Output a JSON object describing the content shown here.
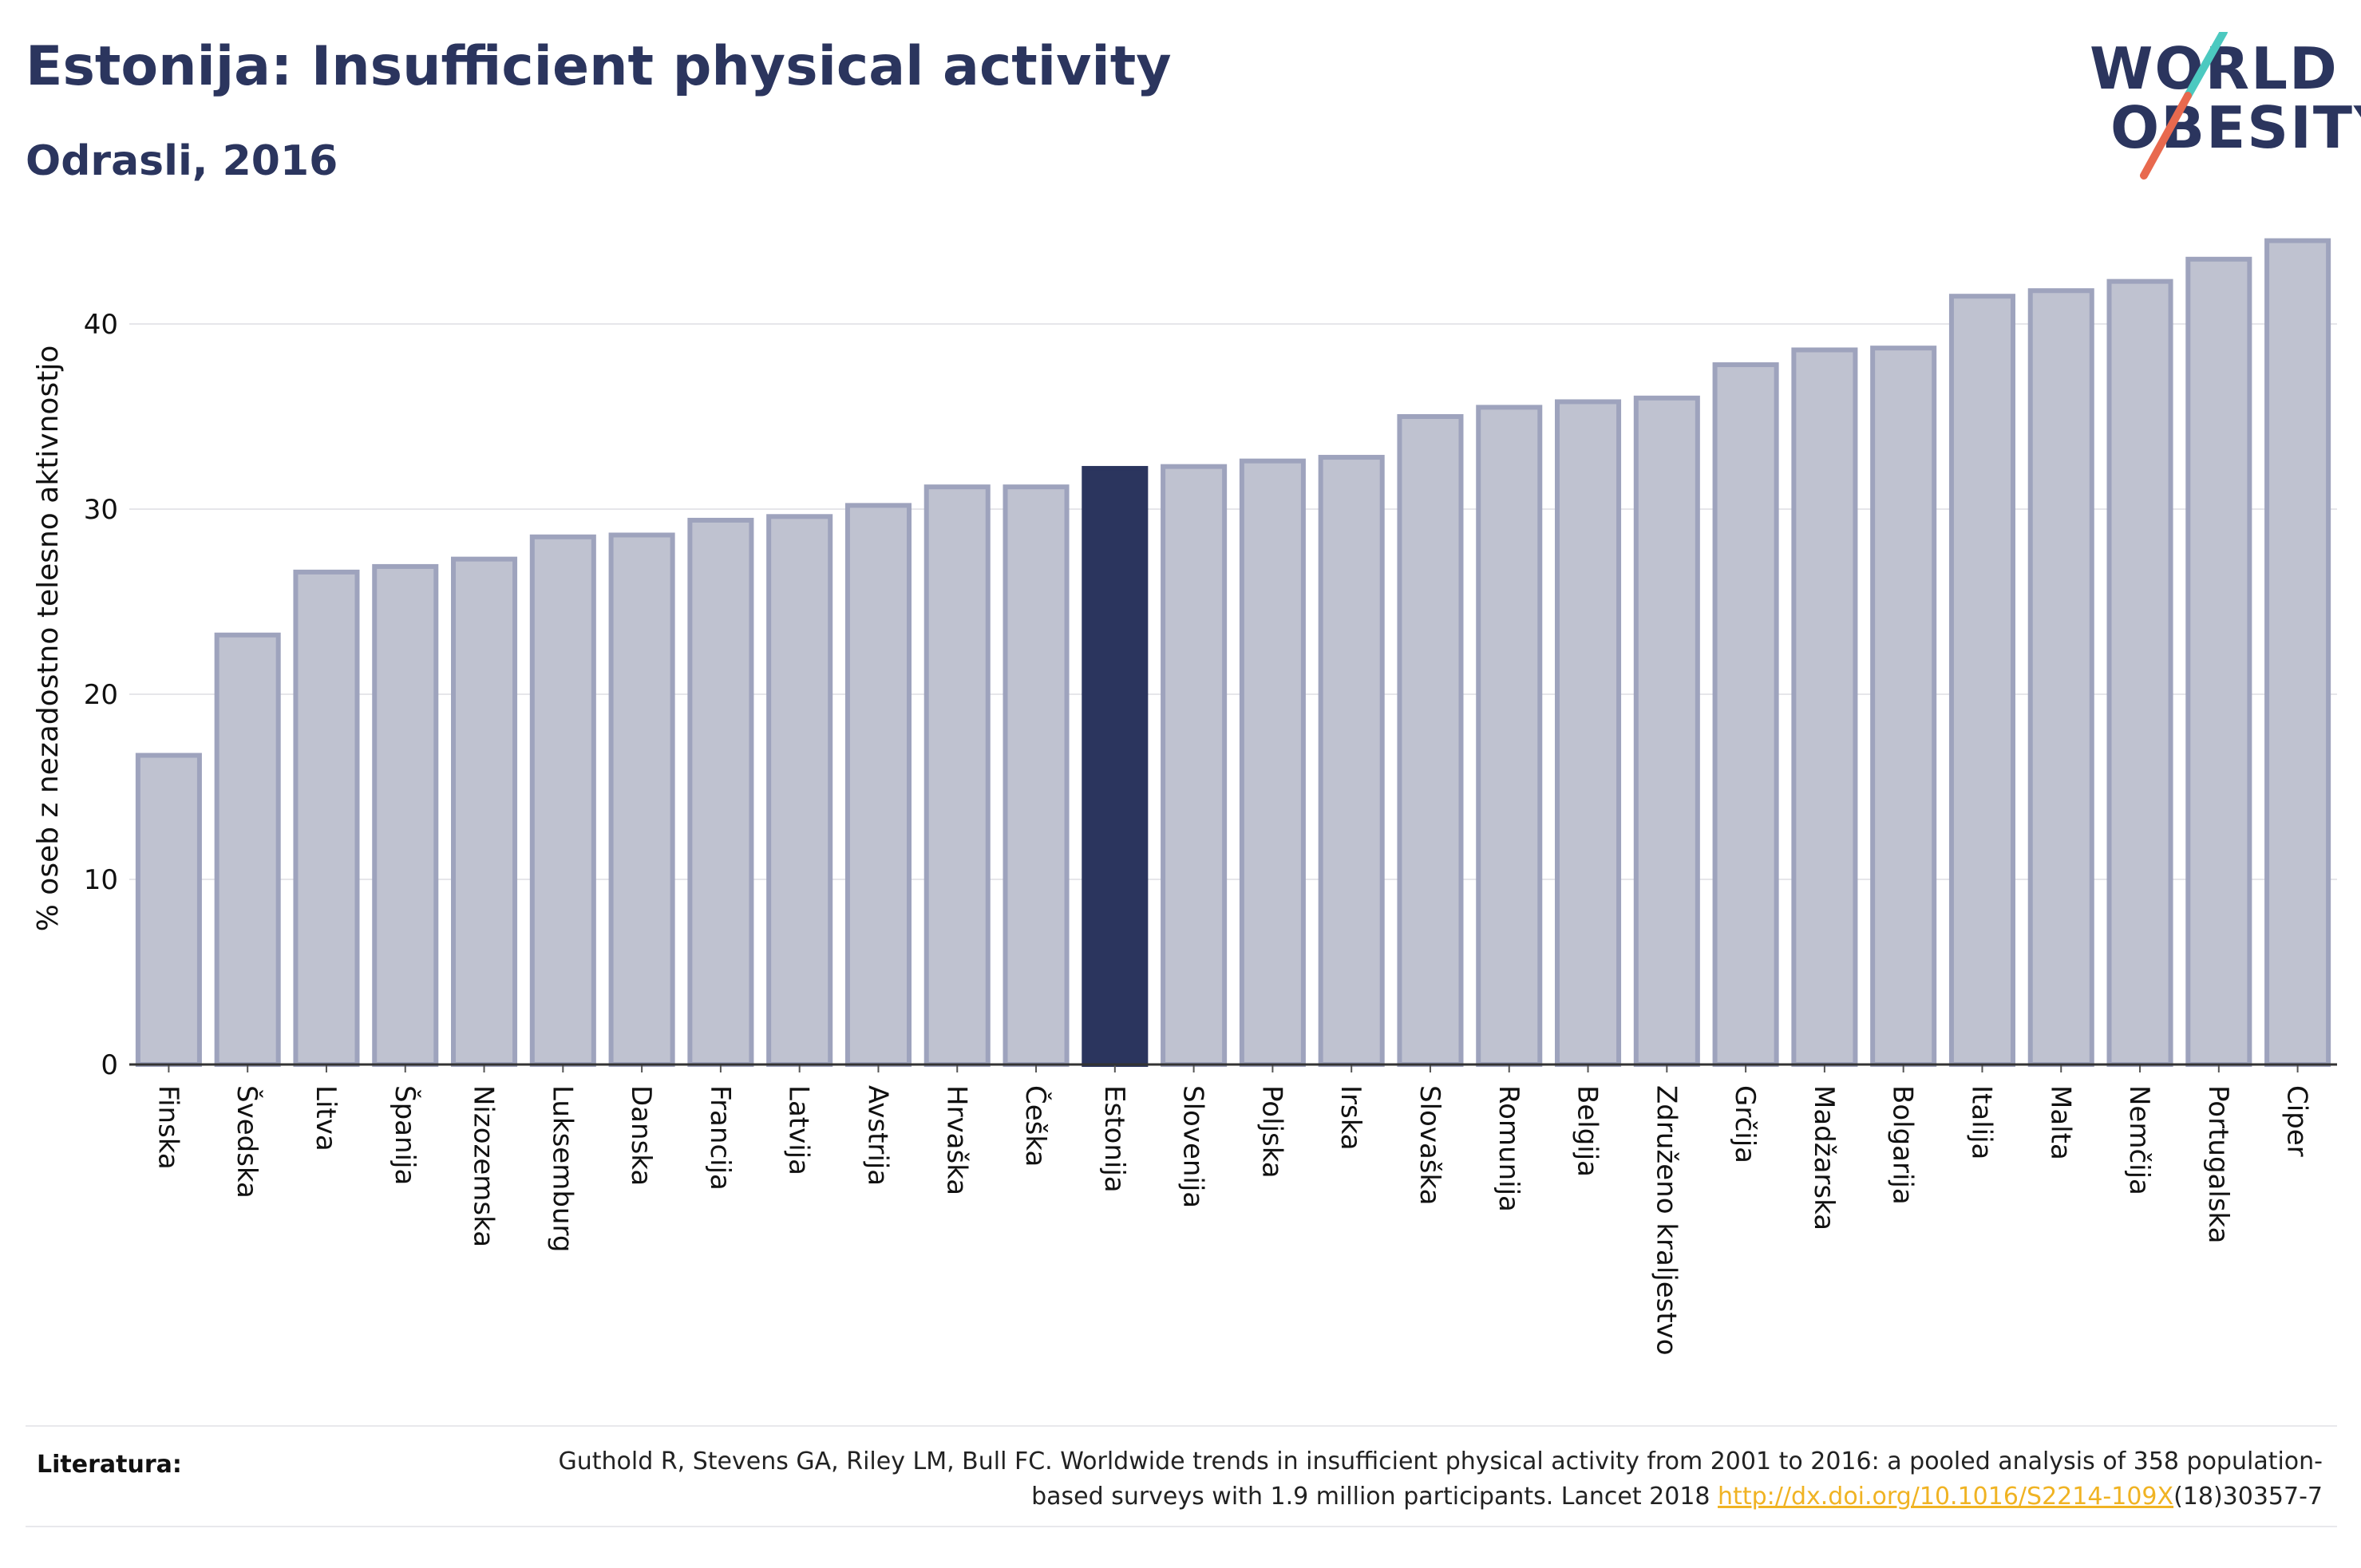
{
  "header": {
    "title": "Estonija: Insufficient physical activity",
    "subtitle": "Odrasli, 2016"
  },
  "logo": {
    "line1": "WORLD",
    "line2": "OBESITY",
    "colors": [
      "#2b355e",
      "#4cc9c0",
      "#e8694e"
    ]
  },
  "chart_data": {
    "type": "bar",
    "ylabel": "% oseb z nezadostno telesno aktivnostjo",
    "xlabel": "",
    "ylim": [
      0,
      45
    ],
    "yticks": [
      0,
      10,
      20,
      30,
      40
    ],
    "grid": true,
    "highlight": "Estonija",
    "colors": {
      "bar": "#bfc2d0",
      "bar_edge": "#9ea3bd",
      "highlight": "#2b355e"
    },
    "categories": [
      "Finska",
      "Švedska",
      "Litva",
      "Španija",
      "Nizozemska",
      "Luksemburg",
      "Danska",
      "Francija",
      "Latvija",
      "Avstrija",
      "Hrvaška",
      "Češka",
      "Estonija",
      "Slovenija",
      "Poljska",
      "Irska",
      "Slovaška",
      "Romunija",
      "Belgija",
      "Združeno kraljestvo",
      "Grčija",
      "Madžarska",
      "Bolgarija",
      "Italija",
      "Malta",
      "Nemčija",
      "Portugalska",
      "Ciper"
    ],
    "values": [
      16.7,
      23.2,
      26.6,
      26.9,
      27.3,
      28.5,
      28.6,
      29.4,
      29.6,
      30.2,
      31.2,
      31.2,
      32.2,
      32.3,
      32.6,
      32.8,
      35.0,
      35.5,
      35.8,
      36.0,
      37.8,
      38.6,
      38.7,
      41.5,
      41.8,
      42.3,
      43.5,
      44.5
    ]
  },
  "footer": {
    "label": "Literatura:",
    "citation_part1": "Guthold R, Stevens GA, Riley LM, Bull FC. Worldwide trends in insufficient physical activity from 2001 to 2016: a pooled analysis of 358 population-based surveys with 1.9 million participants. Lancet 2018 ",
    "link_text": "http://dx.doi.org/10.1016/S2214-109X",
    "citation_part2": "(18)30357-7"
  }
}
